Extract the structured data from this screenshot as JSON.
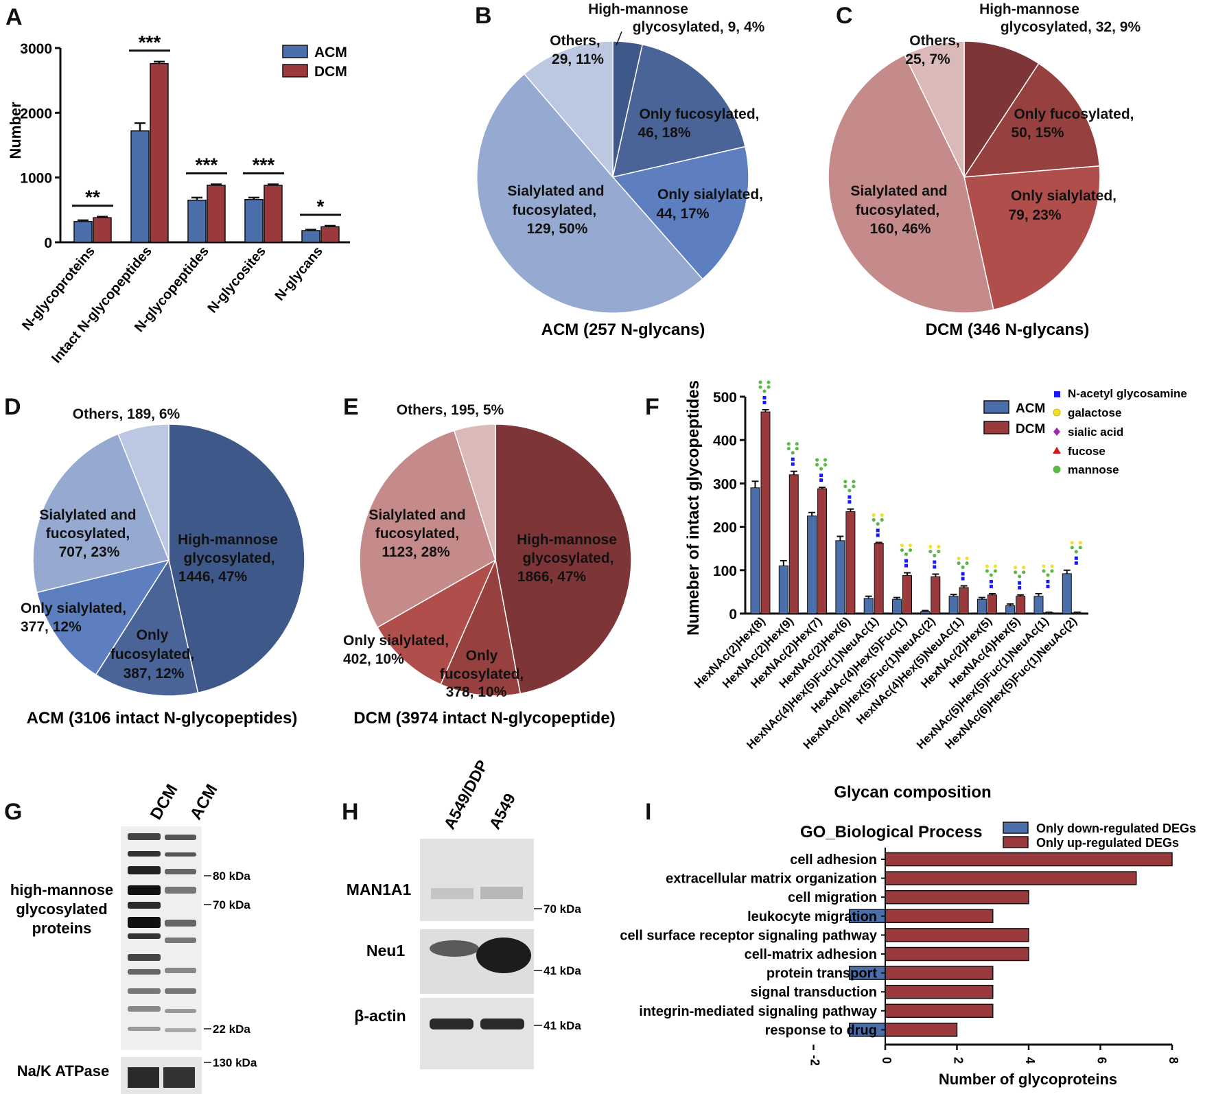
{
  "colors": {
    "acm": "#4a6fab",
    "dcm": "#9b3a3c",
    "acm_pie": [
      "#3e5889",
      "#4a6498",
      "#5d7fbf",
      "#96a9d0",
      "#bcc7e1"
    ],
    "dcm_pie": [
      "#7e3537",
      "#974040",
      "#b04e4c",
      "#c58b8b",
      "#dcb9b9"
    ],
    "icon_glcnac": "#1a1aff",
    "icon_galactose": "#f0e030",
    "icon_sialic": "#9a2aa8",
    "icon_fucose": "#d01818",
    "icon_mannose": "#5cb848"
  },
  "panels": {
    "A": "A",
    "B": "B",
    "C": "C",
    "D": "D",
    "E": "E",
    "F": "F",
    "G": "G",
    "H": "H",
    "I": "I"
  },
  "chart_data": [
    {
      "id": "A",
      "type": "bar",
      "title": "",
      "xlabel": "",
      "ylabel": "Number",
      "ylim": [
        0,
        3000
      ],
      "yticks": [
        "0",
        "1000",
        "2000",
        "3000"
      ],
      "categories": [
        "N-glycoproteins",
        "Intact N-glycopeptides",
        "N-glycopeptides",
        "N-glycosites",
        "N-glycans"
      ],
      "series": [
        {
          "name": "ACM",
          "values": [
            320,
            1720,
            650,
            660,
            180
          ],
          "errors": [
            20,
            120,
            40,
            30,
            15
          ]
        },
        {
          "name": "DCM",
          "values": [
            380,
            2760,
            880,
            880,
            240
          ],
          "errors": [
            15,
            30,
            15,
            15,
            15
          ]
        }
      ],
      "significance": [
        "**",
        "***",
        "***",
        "***",
        "*"
      ],
      "legend": "top-right"
    },
    {
      "id": "B",
      "type": "pie",
      "title": "ACM (257 N-glycans)",
      "slices": [
        {
          "label": "High-mannose glycosylated",
          "value": 9,
          "percent": "4%",
          "text1": "High-mannose",
          "text2": "glycosylated, 9, 4%"
        },
        {
          "label": "Only fucosylated",
          "value": 46,
          "percent": "18%",
          "text1": "Only fucosylated,",
          "text2": "46, 18%"
        },
        {
          "label": "Only sialylated",
          "value": 44,
          "percent": "17%",
          "text1": "Only sialylated,",
          "text2": "44, 17%"
        },
        {
          "label": "Sialylated and fucosylated",
          "value": 129,
          "percent": "50%",
          "text1": "Sialylated and",
          "text2": "fucosylated,",
          "text3": "129, 50%"
        },
        {
          "label": "Others",
          "value": 29,
          "percent": "11%",
          "text1": "Others,",
          "text2": "29, 11%"
        }
      ]
    },
    {
      "id": "C",
      "type": "pie",
      "title": "DCM (346 N-glycans)",
      "slices": [
        {
          "label": "High-mannose glycosylated",
          "value": 32,
          "percent": "9%",
          "text1": "High-mannose",
          "text2": "glycosylated, 32, 9%"
        },
        {
          "label": "Only fucosylated",
          "value": 50,
          "percent": "15%",
          "text1": "Only fucosylated,",
          "text2": "50, 15%"
        },
        {
          "label": "Only sialylated",
          "value": 79,
          "percent": "23%",
          "text1": "Only sialylated,",
          "text2": "79, 23%"
        },
        {
          "label": "Sialylated and fucosylated",
          "value": 160,
          "percent": "46%",
          "text1": "Sialylated and",
          "text2": "fucosylated,",
          "text3": "160, 46%"
        },
        {
          "label": "Others",
          "value": 25,
          "percent": "7%",
          "text1": "Others,",
          "text2": "25, 7%"
        }
      ]
    },
    {
      "id": "D",
      "type": "pie",
      "title": "ACM (3106 intact N-glycopeptides)",
      "slices": [
        {
          "label": "High-mannose glycosylated",
          "value": 1446,
          "percent": "47%",
          "text1": "High-mannose",
          "text2": "glycosylated,",
          "text3": "1446, 47%"
        },
        {
          "label": "Only fucosylated",
          "value": 387,
          "percent": "12%",
          "text1": "Only",
          "text2": "fucosylated,",
          "text3": "387, 12%"
        },
        {
          "label": "Only sialylated",
          "value": 377,
          "percent": "12%",
          "text1": "Only sialylated,",
          "text2": "377, 12%"
        },
        {
          "label": "Sialylated and fucosylated",
          "value": 707,
          "percent": "23%",
          "text1": "Sialylated and",
          "text2": "fucosylated,",
          "text3": "707, 23%"
        },
        {
          "label": "Others",
          "value": 189,
          "percent": "6%",
          "text1": "Others, 189, 6%"
        }
      ]
    },
    {
      "id": "E",
      "type": "pie",
      "title": "DCM (3974 intact N-glycopeptide)",
      "slices": [
        {
          "label": "High-mannose glycosylated",
          "value": 1866,
          "percent": "47%",
          "text1": "High-mannose",
          "text2": "glycosylated,",
          "text3": "1866, 47%"
        },
        {
          "label": "Only fucosylated",
          "value": 378,
          "percent": "10%",
          "text1": "Only",
          "text2": "fucosylated,",
          "text3": "378, 10%"
        },
        {
          "label": "Only sialylated",
          "value": 402,
          "percent": "10%",
          "text1": "Only sialylated,",
          "text2": "402, 10%"
        },
        {
          "label": "Sialylated and fucosylated",
          "value": 1123,
          "percent": "28%",
          "text1": "Sialylated and",
          "text2": "fucosylated,",
          "text3": "1123, 28%"
        },
        {
          "label": "Others",
          "value": 195,
          "percent": "5%",
          "text1": "Others, 195, 5%"
        }
      ]
    },
    {
      "id": "F",
      "type": "bar",
      "title": "",
      "xlabel": "Glycan composition",
      "ylabel": "Numeber of intact glycopeptides",
      "ylim": [
        0,
        500
      ],
      "yticks": [
        "0",
        "100",
        "200",
        "300",
        "400",
        "500"
      ],
      "categories": [
        "HexNAc(2)Hex(8)",
        "HexNAc(2)Hex(9)",
        "HexNAc(2)Hex(7)",
        "HexNAc(2)Hex(6)",
        "HexNAc(4)Hex(5)Fuc(1)NeuAc(1)",
        "HexNAc(4)Hex(5)Fuc(1)",
        "HexNAc(4)Hex(5)Fuc(1)NeuAc(2)",
        "HexNAc(4)Hex(5)NeuAc(1)",
        "HexNAc(2)Hex(5)",
        "HexNAc(4)Hex(5)",
        "HexNAc(5)Hex(5)Fuc(1)NeuAc(1)",
        "HexNAc(6)Hex(5)Fuc(1)NeuAc(2)"
      ],
      "series": [
        {
          "name": "ACM",
          "values": [
            290,
            110,
            225,
            168,
            35,
            33,
            5,
            40,
            33,
            18,
            40,
            92
          ],
          "errors": [
            15,
            12,
            8,
            10,
            5,
            4,
            2,
            4,
            4,
            4,
            6,
            8
          ]
        },
        {
          "name": "DCM",
          "values": [
            465,
            320,
            288,
            235,
            162,
            88,
            85,
            60,
            43,
            40,
            2,
            2
          ],
          "errors": [
            5,
            8,
            3,
            6,
            2,
            6,
            6,
            4,
            3,
            3,
            1,
            1
          ]
        }
      ],
      "glycan_legend": [
        "N-acetyl glycosamine",
        "galactose",
        "sialic acid",
        "fucose",
        "mannose"
      ],
      "legend": "top-right"
    },
    {
      "id": "I",
      "type": "bar",
      "orientation": "horizontal",
      "title": "GO_Biological Process",
      "xlabel": "Number of glycoproteins",
      "xlim": [
        -2,
        8
      ],
      "xticks": [
        "-2",
        "0",
        "2",
        "4",
        "6",
        "8"
      ],
      "categories": [
        "cell adhesion",
        "extracellular matrix organization",
        "cell migration",
        "leukocyte migration",
        "cell surface receptor signaling pathway",
        "cell-matrix adhesion",
        "protein transport",
        "signal transduction",
        "integrin-mediated signaling pathway",
        "response to drug"
      ],
      "series": [
        {
          "name": "Only down-regulated DEGs",
          "values": [
            0,
            0,
            0,
            -1,
            0,
            0,
            -1,
            0,
            0,
            -1
          ]
        },
        {
          "name": "Only up-regulated DEGs",
          "values": [
            8,
            7,
            4,
            3,
            4,
            4,
            3,
            3,
            3,
            2
          ]
        }
      ],
      "legend": "top-right"
    }
  ],
  "blots": {
    "G": {
      "lanes": [
        "DCM",
        "ACM"
      ],
      "rows": [
        {
          "label1": "high-mannose",
          "label2": "glycosylated",
          "label3": "proteins"
        },
        {
          "label1": "Na/K ATPase"
        }
      ],
      "markers": [
        "80 kDa",
        "70 kDa",
        "22 kDa",
        "130 kDa"
      ]
    },
    "H": {
      "lanes": [
        "A549/DDP",
        "A549"
      ],
      "rows": [
        {
          "label1": "MAN1A1",
          "marker": "70 kDa"
        },
        {
          "label1": "Neu1",
          "marker": "41 kDa"
        },
        {
          "label1": "β-actin",
          "marker": "41 kDa"
        }
      ]
    }
  }
}
